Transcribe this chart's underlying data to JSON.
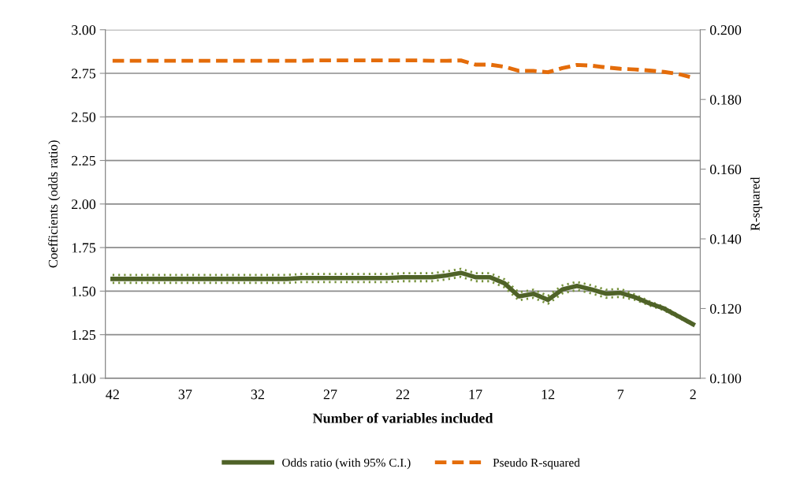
{
  "chart_data": {
    "type": "line",
    "xlabel": "Number of variables included",
    "ylabel": "Coefficients (odds ratio)",
    "y2label": "R-squared",
    "categories": [
      "42",
      null,
      null,
      null,
      null,
      "37",
      null,
      null,
      null,
      null,
      "32",
      null,
      null,
      null,
      null,
      "27",
      null,
      null,
      null,
      null,
      "22",
      null,
      null,
      null,
      null,
      "17",
      null,
      null,
      null,
      null,
      "12",
      null,
      null,
      null,
      null,
      "7",
      null,
      null,
      null,
      null,
      "2"
    ],
    "ylim": [
      1.0,
      3.0
    ],
    "yticks": [
      {
        "value": 1.0,
        "label": "1.00"
      },
      {
        "value": 1.25,
        "label": "1.25"
      },
      {
        "value": 1.5,
        "label": "1.50"
      },
      {
        "value": 1.75,
        "label": "1.75"
      },
      {
        "value": 2.0,
        "label": "2.00"
      },
      {
        "value": 2.25,
        "label": "2.25"
      },
      {
        "value": 2.5,
        "label": "2.50"
      },
      {
        "value": 2.75,
        "label": "2.75"
      },
      {
        "value": 3.0,
        "label": "3.00"
      }
    ],
    "y2lim": [
      0.1,
      0.2
    ],
    "y2ticks": [
      {
        "value": 0.1,
        "label": "0.100"
      },
      {
        "value": 0.12,
        "label": "0.120"
      },
      {
        "value": 0.14,
        "label": "0.140"
      },
      {
        "value": 0.16,
        "label": "0.160"
      },
      {
        "value": 0.18,
        "label": "0.180"
      },
      {
        "value": 0.2,
        "label": "0.200"
      }
    ],
    "grid": "y",
    "legend": "bottom",
    "marker": "none",
    "series": [
      {
        "color": "#77933c",
        "line_style": "dotted",
        "values": [
          1.593,
          1.593,
          1.593,
          1.593,
          1.593,
          1.593,
          1.593,
          1.593,
          1.593,
          1.593,
          1.593,
          1.593,
          1.593,
          1.598,
          1.598,
          1.598,
          1.598,
          1.598,
          1.598,
          1.598,
          1.603,
          1.603,
          1.603,
          1.613,
          1.628,
          1.603,
          1.603,
          1.568,
          1.493,
          1.508,
          1.473,
          1.533,
          1.553,
          1.533,
          1.508,
          1.513,
          1.48,
          1.442,
          1.41,
          1.363,
          1.316
        ]
      },
      {
        "color": "#77933c",
        "line_style": "dotted",
        "values": [
          1.547,
          1.547,
          1.547,
          1.547,
          1.547,
          1.547,
          1.547,
          1.547,
          1.547,
          1.547,
          1.547,
          1.547,
          1.547,
          1.552,
          1.552,
          1.552,
          1.552,
          1.552,
          1.552,
          1.552,
          1.557,
          1.557,
          1.557,
          1.567,
          1.582,
          1.557,
          1.557,
          1.522,
          1.447,
          1.462,
          1.427,
          1.487,
          1.507,
          1.487,
          1.462,
          1.467,
          1.45,
          1.418,
          1.39,
          1.347,
          1.304
        ]
      },
      {
        "name": "Odds ratio (with 95% C.I.)",
        "color": "#4f6228",
        "line_style": "solid",
        "values": [
          1.57,
          1.57,
          1.57,
          1.57,
          1.57,
          1.57,
          1.57,
          1.57,
          1.57,
          1.57,
          1.57,
          1.57,
          1.57,
          1.575,
          1.575,
          1.575,
          1.575,
          1.575,
          1.575,
          1.575,
          1.58,
          1.58,
          1.58,
          1.59,
          1.605,
          1.58,
          1.58,
          1.545,
          1.47,
          1.485,
          1.45,
          1.51,
          1.53,
          1.51,
          1.485,
          1.49,
          1.465,
          1.43,
          1.4,
          1.355,
          1.31
        ]
      },
      {
        "name": "Pseudo R-squared",
        "color": "#e46c0a",
        "line_style": "dashed",
        "axis": "y2",
        "values": [
          0.1911,
          0.1911,
          0.1911,
          0.1911,
          0.1911,
          0.1911,
          0.1911,
          0.1911,
          0.1911,
          0.1911,
          0.1911,
          0.1911,
          0.1911,
          0.1911,
          0.1912,
          0.1912,
          0.1912,
          0.1912,
          0.1912,
          0.1912,
          0.1912,
          0.1912,
          0.1911,
          0.1911,
          0.1912,
          0.19,
          0.19,
          0.1894,
          0.1882,
          0.1882,
          0.1878,
          0.189,
          0.1899,
          0.1897,
          0.1892,
          0.1888,
          0.1886,
          0.1883,
          0.1879,
          0.1873,
          0.1862
        ]
      }
    ]
  }
}
